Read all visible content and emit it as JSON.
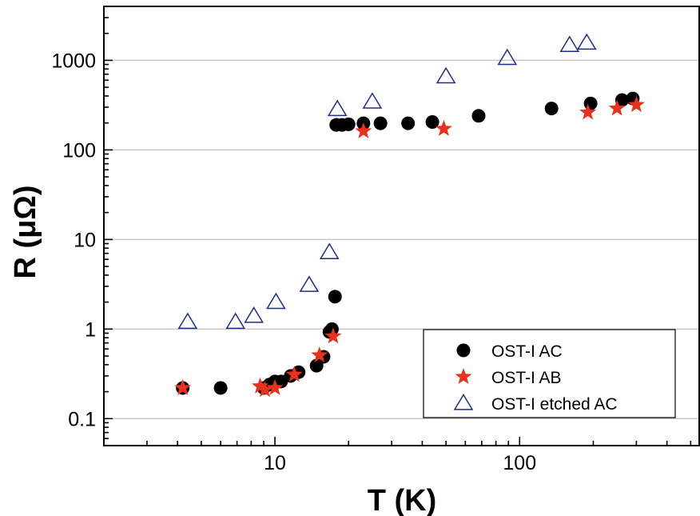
{
  "chart_data": {
    "type": "scatter",
    "title": "",
    "xlabel": "T (K)",
    "ylabel": "R (μΩ)",
    "xscale": "log",
    "yscale": "log",
    "xlim": [
      2,
      550
    ],
    "ylim": [
      0.05,
      4000
    ],
    "x_ticks": [
      10,
      100
    ],
    "x_tick_labels": [
      "10",
      "100"
    ],
    "y_ticks": [
      0.1,
      1,
      10,
      100,
      1000
    ],
    "y_tick_labels": [
      "0.1",
      "1",
      "10",
      "100",
      "1000"
    ],
    "grid": "horizontal major gridlines",
    "legend_position": "bottom-right",
    "series": [
      {
        "name": "OST-I AC",
        "marker": "circle",
        "color": "#000000",
        "points": [
          [
            4.2,
            0.22
          ],
          [
            6.0,
            0.22
          ],
          [
            9.0,
            0.22
          ],
          [
            9.5,
            0.24
          ],
          [
            10.0,
            0.26
          ],
          [
            10.6,
            0.26
          ],
          [
            11.6,
            0.3
          ],
          [
            12.5,
            0.33
          ],
          [
            14.8,
            0.39
          ],
          [
            15.8,
            0.49
          ],
          [
            16.7,
            0.93
          ],
          [
            17.1,
            1.0
          ],
          [
            17.6,
            2.3
          ],
          [
            17.8,
            190
          ],
          [
            18.8,
            190
          ],
          [
            20.0,
            193
          ],
          [
            23.0,
            198
          ],
          [
            27.0,
            198
          ],
          [
            35.0,
            198
          ],
          [
            44.0,
            205
          ],
          [
            68.0,
            240
          ],
          [
            135.0,
            290
          ],
          [
            195.0,
            330
          ],
          [
            262.0,
            360
          ],
          [
            290.0,
            375
          ]
        ]
      },
      {
        "name": "OST-I AB",
        "marker": "star",
        "color": "#e8321c",
        "points": [
          [
            4.2,
            0.22
          ],
          [
            8.7,
            0.23
          ],
          [
            9.1,
            0.21
          ],
          [
            10.0,
            0.22
          ],
          [
            12.0,
            0.31
          ],
          [
            15.2,
            0.51
          ],
          [
            17.3,
            0.83
          ],
          [
            23.0,
            162
          ],
          [
            49.0,
            172
          ],
          [
            190.0,
            262
          ],
          [
            250.0,
            290
          ],
          [
            300.0,
            318
          ]
        ]
      },
      {
        "name": "OST-I etched AC",
        "marker": "triangle-open",
        "color": "#1f2c8f",
        "points": [
          [
            4.4,
            1.2
          ],
          [
            6.9,
            1.2
          ],
          [
            8.2,
            1.4
          ],
          [
            10.1,
            2.0
          ],
          [
            13.8,
            3.1
          ],
          [
            16.7,
            7.2
          ],
          [
            18.0,
            285
          ],
          [
            25.0,
            345
          ],
          [
            50.0,
            660
          ],
          [
            89.0,
            1060
          ],
          [
            160.0,
            1480
          ],
          [
            188.0,
            1570
          ]
        ]
      }
    ]
  }
}
